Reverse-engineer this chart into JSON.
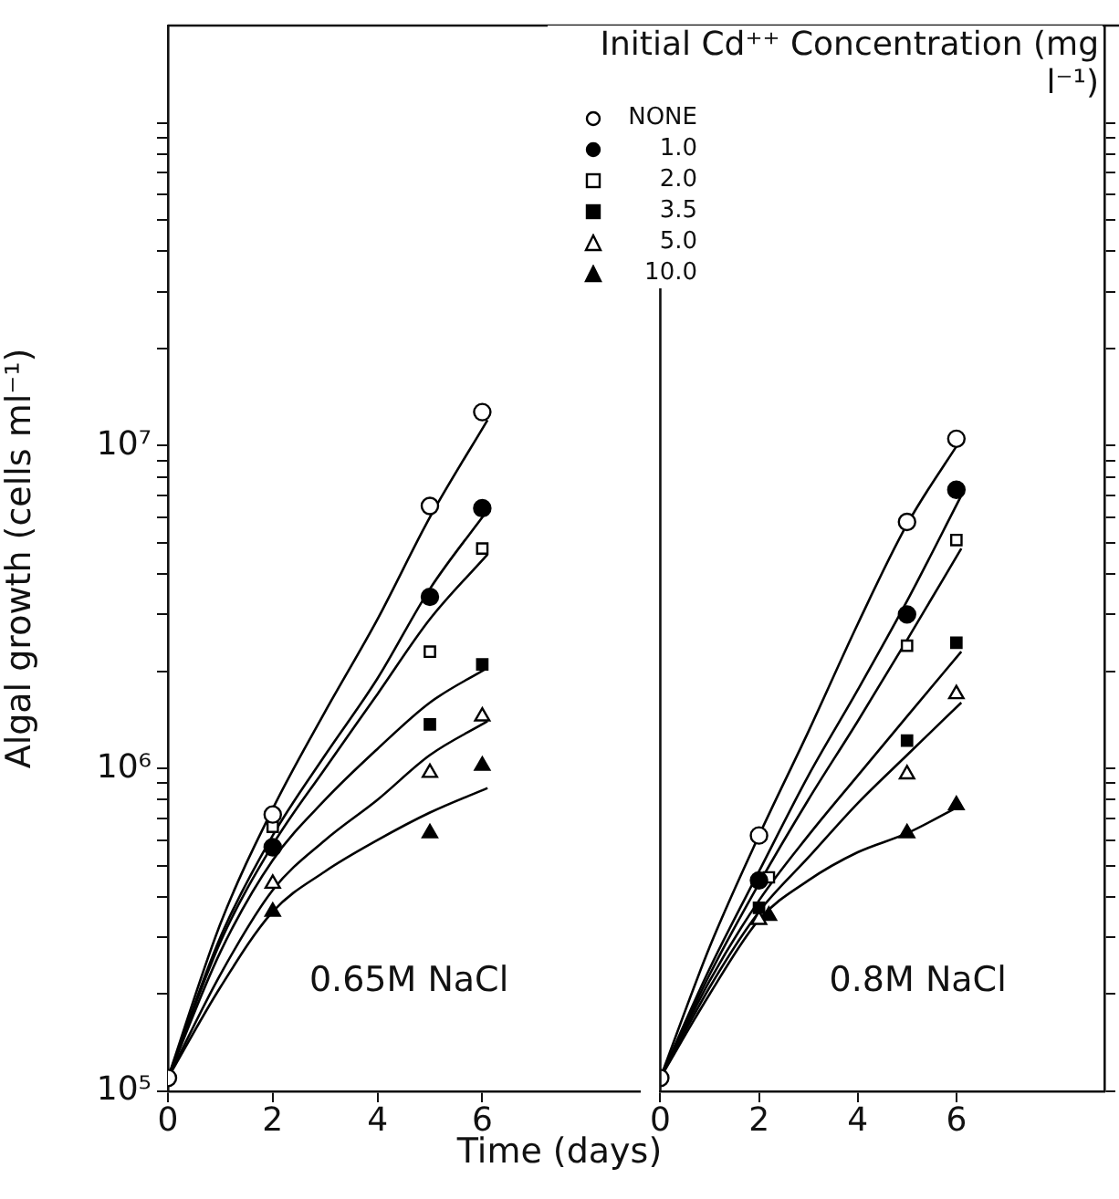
{
  "chart_data": [
    {
      "type": "scatter",
      "xlabel": "Time (days)",
      "ylabel": "Algal growth (cells ml⁻¹)",
      "legend_title": "Initial Cd⁺⁺ Concentration (mg l⁻¹)",
      "legend": "top right",
      "log": "y",
      "grid": false,
      "xlim": [
        0,
        9
      ],
      "xticks": [
        0,
        2,
        4,
        6
      ],
      "ylim": [
        100000,
        200000000
      ],
      "yticks": [
        {
          "value": 100000,
          "label": "10⁵"
        },
        {
          "value": 200000,
          "label": null
        },
        {
          "value": 300000,
          "label": null
        },
        {
          "value": 400000,
          "label": null
        },
        {
          "value": 500000,
          "label": null
        },
        {
          "value": 600000,
          "label": null
        },
        {
          "value": 700000,
          "label": null
        },
        {
          "value": 800000,
          "label": null
        },
        {
          "value": 900000,
          "label": null
        },
        {
          "value": 1000000,
          "label": "10⁶"
        },
        {
          "value": 2000000,
          "label": null
        },
        {
          "value": 3000000,
          "label": null
        },
        {
          "value": 4000000,
          "label": null
        },
        {
          "value": 5000000,
          "label": null
        },
        {
          "value": 6000000,
          "label": null
        },
        {
          "value": 7000000,
          "label": null
        },
        {
          "value": 8000000,
          "label": null
        },
        {
          "value": 9000000,
          "label": null
        },
        {
          "value": 10000000,
          "label": "10⁷"
        },
        {
          "value": 20000000,
          "label": null
        },
        {
          "value": 30000000,
          "label": null
        },
        {
          "value": 40000000,
          "label": null
        },
        {
          "value": 50000000,
          "label": null
        },
        {
          "value": 60000000,
          "label": null
        },
        {
          "value": 70000000,
          "label": null
        },
        {
          "value": 80000000,
          "label": null
        },
        {
          "value": 90000000,
          "label": null
        },
        {
          "value": 100000000,
          "label": null
        }
      ],
      "annotations": [
        "0.65M NaCl"
      ],
      "series": [
        {
          "name": "NONE",
          "type": "scatter",
          "marker": "circle",
          "color": "#ffffff",
          "x": [
            0,
            2,
            5,
            6
          ],
          "values": [
            110000,
            720000,
            6500000,
            12700000
          ]
        },
        {
          "name": "1.0",
          "type": "scatter",
          "marker": "circle",
          "color": "#000000",
          "x": [
            2,
            5,
            6
          ],
          "values": [
            570000,
            3400000,
            6400000
          ]
        },
        {
          "name": "2.0",
          "type": "scatter",
          "marker": "square",
          "color": "#ffffff",
          "x": [
            2,
            5,
            6
          ],
          "values": [
            660000,
            2300000,
            4800000
          ]
        },
        {
          "name": "3.5",
          "type": "scatter",
          "marker": "square",
          "color": "#000000",
          "x": [
            5,
            6
          ],
          "values": [
            1370000,
            2100000
          ]
        },
        {
          "name": "5.0",
          "type": "scatter",
          "marker": "triangle",
          "color": "#ffffff",
          "x": [
            2,
            5,
            6
          ],
          "values": [
            440000,
            970000,
            1450000
          ]
        },
        {
          "name": "10.0",
          "type": "scatter",
          "marker": "triangle",
          "color": "#000000",
          "x": [
            2,
            5,
            6
          ],
          "values": [
            360000,
            630000,
            1020000
          ]
        },
        {
          "type": "line",
          "color": "#000000",
          "x": [
            0,
            1,
            2,
            3,
            4,
            5,
            6.1
          ],
          "values": [
            110000,
            330000,
            750000,
            1500000,
            2900000,
            6000000,
            12000000
          ]
        },
        {
          "type": "line",
          "color": "#000000",
          "x": [
            0,
            1,
            2,
            3,
            4,
            5,
            6.1
          ],
          "values": [
            110000,
            300000,
            620000,
            1100000,
            1900000,
            3600000,
            6300000
          ]
        },
        {
          "type": "line",
          "color": "#000000",
          "x": [
            0,
            1,
            2,
            3,
            4,
            5,
            6.1
          ],
          "values": [
            110000,
            290000,
            580000,
            1000000,
            1700000,
            2900000,
            4600000
          ]
        },
        {
          "type": "line",
          "color": "#000000",
          "x": [
            0,
            1,
            2,
            3,
            4,
            5,
            6.1
          ],
          "values": [
            110000,
            270000,
            520000,
            800000,
            1150000,
            1600000,
            2050000
          ]
        },
        {
          "type": "line",
          "color": "#000000",
          "x": [
            0,
            1,
            2,
            3,
            4,
            5,
            6.1
          ],
          "values": [
            110000,
            230000,
            420000,
            600000,
            800000,
            1100000,
            1400000
          ]
        },
        {
          "type": "line",
          "color": "#000000",
          "x": [
            0,
            1,
            2,
            3,
            4,
            5,
            6.1
          ],
          "values": [
            110000,
            210000,
            360000,
            480000,
            600000,
            730000,
            870000
          ]
        }
      ]
    },
    {
      "type": "scatter",
      "log": "y",
      "grid": false,
      "tick_labels": "x",
      "xlim": [
        0,
        9
      ],
      "xticks": [
        0,
        2,
        4,
        6
      ],
      "ylim": [
        100000,
        200000000
      ],
      "yticks": [
        {
          "value": 100000,
          "label": null
        },
        {
          "value": 200000,
          "label": null
        },
        {
          "value": 300000,
          "label": null
        },
        {
          "value": 400000,
          "label": null
        },
        {
          "value": 500000,
          "label": null
        },
        {
          "value": 600000,
          "label": null
        },
        {
          "value": 700000,
          "label": null
        },
        {
          "value": 800000,
          "label": null
        },
        {
          "value": 900000,
          "label": null
        },
        {
          "value": 1000000,
          "label": null
        },
        {
          "value": 2000000,
          "label": null
        },
        {
          "value": 3000000,
          "label": null
        },
        {
          "value": 4000000,
          "label": null
        },
        {
          "value": 5000000,
          "label": null
        },
        {
          "value": 6000000,
          "label": null
        },
        {
          "value": 7000000,
          "label": null
        },
        {
          "value": 8000000,
          "label": null
        },
        {
          "value": 9000000,
          "label": null
        },
        {
          "value": 10000000,
          "label": null
        },
        {
          "value": 20000000,
          "label": null
        },
        {
          "value": 30000000,
          "label": null
        },
        {
          "value": 40000000,
          "label": null
        },
        {
          "value": 50000000,
          "label": null
        },
        {
          "value": 60000000,
          "label": null
        },
        {
          "value": 70000000,
          "label": null
        },
        {
          "value": 80000000,
          "label": null
        },
        {
          "value": 90000000,
          "label": null
        },
        {
          "value": 100000000,
          "label": null
        }
      ],
      "annotations": [
        "0.8M NaCl"
      ],
      "series": [
        {
          "type": "scatter",
          "marker": "circle",
          "color": "#ffffff",
          "x": [
            0,
            2,
            5,
            6
          ],
          "values": [
            110000,
            620000,
            5800000,
            10500000
          ]
        },
        {
          "type": "scatter",
          "marker": "circle",
          "color": "#000000",
          "x": [
            2,
            5,
            6
          ],
          "values": [
            450000,
            3000000,
            7300000
          ]
        },
        {
          "type": "scatter",
          "marker": "square",
          "color": "#ffffff",
          "x": [
            2.2,
            5,
            6
          ],
          "values": [
            460000,
            2400000,
            5100000
          ]
        },
        {
          "type": "scatter",
          "marker": "square",
          "color": "#000000",
          "x": [
            2,
            5,
            6
          ],
          "values": [
            370000,
            1220000,
            2450000
          ]
        },
        {
          "type": "scatter",
          "marker": "triangle",
          "color": "#ffffff",
          "x": [
            2,
            5,
            6
          ],
          "values": [
            340000,
            960000,
            1700000
          ]
        },
        {
          "type": "scatter",
          "marker": "triangle",
          "color": "#000000",
          "x": [
            2.2,
            5,
            6
          ],
          "values": [
            350000,
            630000,
            770000
          ]
        },
        {
          "type": "line",
          "color": "#000000",
          "x": [
            0,
            1,
            2,
            3,
            4,
            5,
            6.1
          ],
          "values": [
            110000,
            280000,
            620000,
            1300000,
            2800000,
            5700000,
            10500000
          ]
        },
        {
          "type": "line",
          "color": "#000000",
          "x": [
            0,
            1,
            2,
            3,
            4,
            5,
            6.1
          ],
          "values": [
            110000,
            240000,
            480000,
            950000,
            1750000,
            3300000,
            7000000
          ]
        },
        {
          "type": "line",
          "color": "#000000",
          "x": [
            0,
            1,
            2,
            3,
            4,
            5,
            6.1
          ],
          "values": [
            110000,
            230000,
            440000,
            800000,
            1400000,
            2500000,
            4800000
          ]
        },
        {
          "type": "line",
          "color": "#000000",
          "x": [
            0,
            1,
            2,
            3,
            4,
            5,
            6.1
          ],
          "values": [
            110000,
            220000,
            390000,
            620000,
            950000,
            1450000,
            2300000
          ]
        },
        {
          "type": "line",
          "color": "#000000",
          "x": [
            0,
            1,
            2,
            3,
            4,
            5,
            6.1
          ],
          "values": [
            110000,
            210000,
            360000,
            530000,
            780000,
            1100000,
            1600000
          ]
        },
        {
          "type": "line",
          "color": "#000000",
          "x": [
            0,
            1,
            2,
            3,
            4,
            5,
            6.1
          ],
          "values": [
            110000,
            200000,
            340000,
            450000,
            550000,
            630000,
            770000
          ]
        }
      ]
    }
  ]
}
